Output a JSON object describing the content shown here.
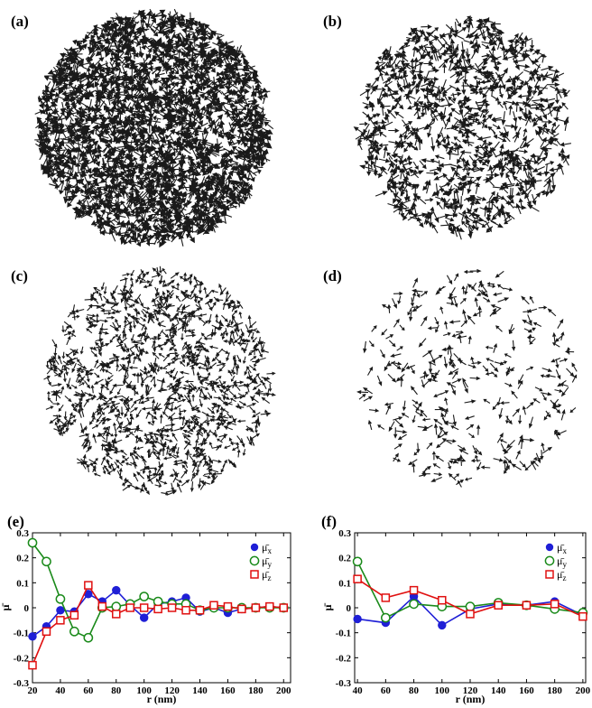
{
  "panels": [
    {
      "label": "(a)"
    },
    {
      "label": "(b)"
    },
    {
      "label": "(c)"
    },
    {
      "label": "(d)"
    },
    {
      "label": "(e)"
    },
    {
      "label": "(f)"
    }
  ],
  "fields": [
    {
      "panel": "(a)",
      "density": "very high"
    },
    {
      "panel": "(b)",
      "density": "high"
    },
    {
      "panel": "(c)",
      "density": "medium"
    },
    {
      "panel": "(d)",
      "density": "low"
    }
  ],
  "colors": {
    "mu_x": "#1f1fd6",
    "mu_y": "#1a8a1a",
    "mu_z": "#e01010",
    "arrow": "#1a1a1a"
  },
  "legend": {
    "mu_x": "μ̄",
    "mu_x_sub": "x",
    "mu_y": "μ̄",
    "mu_y_sub": "y",
    "mu_z": "μ̄",
    "mu_z_sub": "z"
  },
  "chart_data": [
    {
      "panel": "(e)",
      "type": "line",
      "xlabel": "r (nm)",
      "ylabel": "μ̄",
      "xlim": [
        20,
        205
      ],
      "ylim": [
        -0.3,
        0.3
      ],
      "xticks": [
        20,
        40,
        60,
        80,
        100,
        120,
        140,
        160,
        180,
        200
      ],
      "yticks": [
        -0.3,
        -0.2,
        -0.1,
        0,
        0.1,
        0.2,
        0.3
      ],
      "x": [
        20,
        30,
        40,
        50,
        60,
        70,
        80,
        90,
        100,
        110,
        120,
        130,
        140,
        150,
        160,
        170,
        180,
        190,
        200
      ],
      "series": [
        {
          "name": "μ̄x",
          "key": "mu_x",
          "marker": "filled-circle",
          "values": [
            -0.115,
            -0.075,
            -0.01,
            -0.015,
            0.055,
            0.025,
            0.07,
            0.01,
            -0.04,
            0.015,
            0.025,
            0.04,
            -0.015,
            0.0,
            -0.02,
            -0.005,
            0.0,
            0.005,
            0.0
          ]
        },
        {
          "name": "μ̄y",
          "key": "mu_y",
          "marker": "open-circle",
          "values": [
            0.26,
            0.185,
            0.035,
            -0.095,
            -0.12,
            0.0,
            0.005,
            0.015,
            0.045,
            0.025,
            0.015,
            0.015,
            -0.01,
            0.0,
            0.0,
            0.0,
            0.0,
            0.0,
            0.0
          ]
        },
        {
          "name": "μ̄z",
          "key": "mu_z",
          "marker": "open-square",
          "values": [
            -0.23,
            -0.095,
            -0.05,
            -0.03,
            0.09,
            0.005,
            -0.025,
            0.0,
            0.0,
            -0.005,
            0.0,
            -0.01,
            -0.01,
            0.01,
            0.005,
            -0.005,
            0.0,
            0.005,
            0.0
          ]
        }
      ]
    },
    {
      "panel": "(f)",
      "type": "line",
      "xlabel": "r (nm)",
      "ylabel": "μ̄",
      "xlim": [
        38,
        202
      ],
      "ylim": [
        -0.3,
        0.3
      ],
      "xticks": [
        40,
        60,
        80,
        100,
        120,
        140,
        160,
        180,
        200
      ],
      "yticks": [
        -0.3,
        -0.2,
        -0.1,
        0,
        0.1,
        0.2,
        0.3
      ],
      "x": [
        40,
        60,
        80,
        100,
        120,
        140,
        160,
        180,
        200
      ],
      "series": [
        {
          "name": "μ̄x",
          "key": "mu_x",
          "marker": "filled-circle",
          "values": [
            -0.045,
            -0.06,
            0.045,
            -0.07,
            -0.005,
            0.015,
            0.01,
            0.025,
            -0.03
          ]
        },
        {
          "name": "μ̄y",
          "key": "mu_y",
          "marker": "open-circle",
          "values": [
            0.185,
            -0.04,
            0.015,
            0.005,
            0.005,
            0.02,
            0.01,
            -0.005,
            -0.02
          ]
        },
        {
          "name": "μ̄z",
          "key": "mu_z",
          "marker": "open-square",
          "values": [
            0.115,
            0.04,
            0.07,
            0.03,
            -0.025,
            0.01,
            0.01,
            0.015,
            -0.035
          ]
        }
      ]
    }
  ]
}
